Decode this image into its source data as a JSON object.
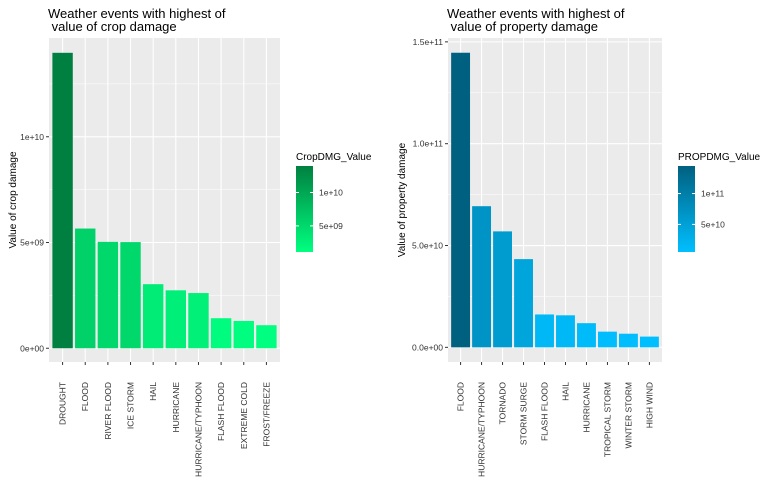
{
  "colors": {
    "panel_bg": "#ebebeb",
    "grid_major": "#ffffff",
    "crop_low": "#00ff80",
    "crop_high": "#008040",
    "prop_low": "#00bfff",
    "prop_high": "#006080"
  },
  "chart_data": [
    {
      "type": "bar",
      "title_line1": "Weather events with highest of",
      "title_line2": " value of crop damage",
      "xlabel": "",
      "ylabel": "Value of crop damage",
      "categories": [
        "DROUGHT",
        "FLOOD",
        "RIVER FLOOD",
        "ICE STORM",
        "HAIL",
        "HURRICANE",
        "HURRICANE/TYPHOON",
        "FLASH FLOOD",
        "EXTREME COLD",
        "FROST/FREEZE"
      ],
      "values": [
        13970000000,
        5660000000,
        5030000000,
        5020000000,
        3030000000,
        2740000000,
        2610000000,
        1420000000,
        1290000000,
        1090000000
      ],
      "ylim": [
        -650000000,
        14670000000
      ],
      "y_ticks": [
        0,
        5000000000,
        10000000000
      ],
      "y_tick_labels": [
        "0e+00",
        "5e+09",
        "1e+10"
      ],
      "grid": true,
      "legend_position": "right",
      "legend": {
        "title": "CropDMG_Value",
        "min": 1090000000,
        "max": 13970000000,
        "ticks": [
          5000000000,
          10000000000
        ],
        "tick_labels": [
          "5e+09",
          "1e+10"
        ]
      }
    },
    {
      "type": "bar",
      "title_line1": "Weather events with highest of",
      "title_line2": " value of property damage",
      "xlabel": "",
      "ylabel": "Value of property damage",
      "categories": [
        "FLOOD",
        "HURRICANE/TYPHOON",
        "TORNADO",
        "STORM SURGE",
        "FLASH FLOOD",
        "HAIL",
        "HURRICANE",
        "TROPICAL STORM",
        "WINTER STORM",
        "HIGH WIND"
      ],
      "values": [
        144660000000,
        69310000000,
        56940000000,
        43320000000,
        16140000000,
        15730000000,
        11870000000,
        7700000000,
        6690000000,
        5270000000
      ],
      "ylim": [
        -7200000000,
        151900000000
      ],
      "y_ticks": [
        0,
        50000000000,
        100000000000,
        150000000000
      ],
      "y_tick_labels": [
        "0.0e+00",
        "5.0e+10",
        "1.0e+11",
        "1.5e+11"
      ],
      "grid": true,
      "legend_position": "right",
      "legend": {
        "title": "PROPDMG_Value",
        "min": 5270000000,
        "max": 144660000000,
        "ticks": [
          50000000000,
          100000000000
        ],
        "tick_labels": [
          "5e+10",
          "1e+11"
        ]
      }
    }
  ]
}
